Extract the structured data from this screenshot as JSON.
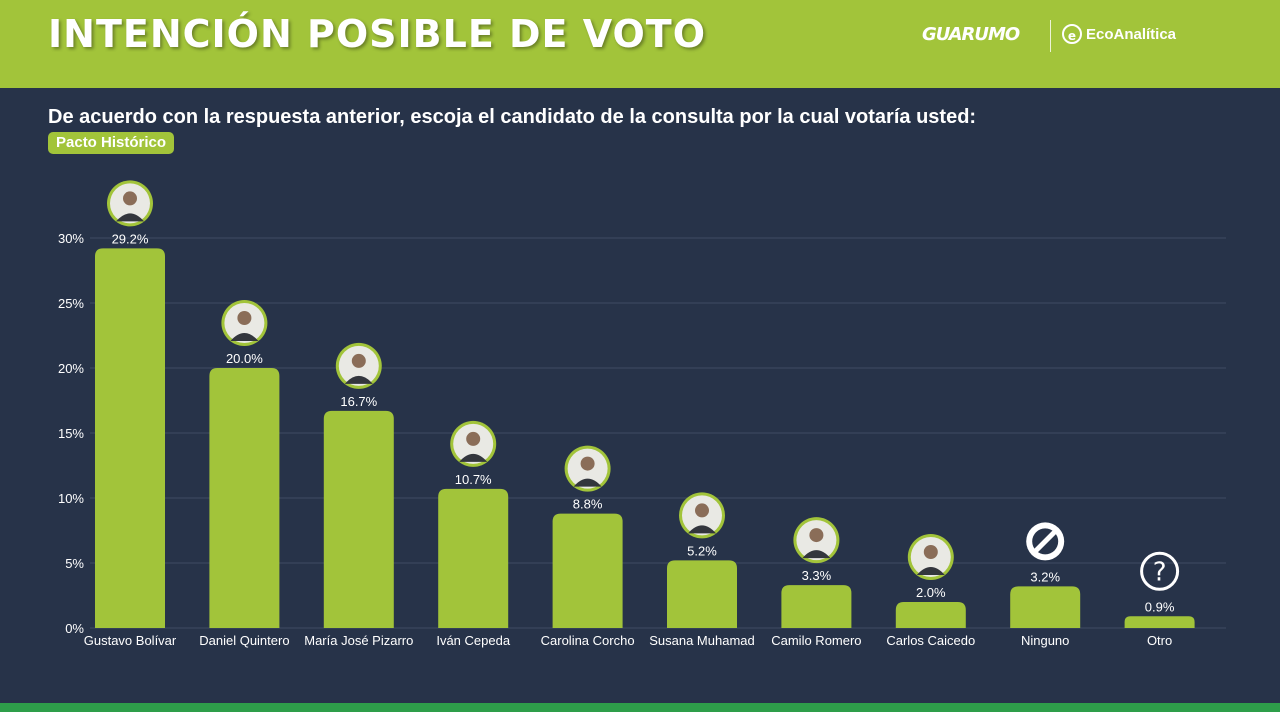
{
  "header": {
    "title": "INTENCIÓN POSIBLE DE VOTO",
    "logo_left": "GUARUMO",
    "logo_right": "EcoAnalítica",
    "logo_right_icon": "e-circle-icon"
  },
  "question": "De acuerdo con la respuesta anterior, escoja el candidato de la consulta por la cual votaría usted:",
  "badge": "Pacto Histórico",
  "colors": {
    "header_bg": "#a2c43a",
    "bar": "#a2c43a",
    "background": "#273349",
    "bottom_bar": "#2e9e4a"
  },
  "chart_data": {
    "type": "bar",
    "categories": [
      "Gustavo Bolívar",
      "Daniel Quintero",
      "María José Pizarro",
      "Iván Cepeda",
      "Carolina Corcho",
      "Susana Muhamad",
      "Camilo Romero",
      "Carlos Caicedo",
      "Ninguno",
      "Otro"
    ],
    "values": [
      29.2,
      20.0,
      16.7,
      10.7,
      8.8,
      5.2,
      3.3,
      2.0,
      3.2,
      0.9
    ],
    "value_labels": [
      "29.2%",
      "20.0%",
      "16.7%",
      "10.7%",
      "8.8%",
      "5.2%",
      "3.3%",
      "2.0%",
      "3.2%",
      "0.9%"
    ],
    "icons": [
      "avatar-icon",
      "avatar-icon",
      "avatar-icon",
      "avatar-icon",
      "avatar-icon",
      "avatar-icon",
      "avatar-icon",
      "avatar-icon",
      "no-entry-icon",
      "question-mark-icon"
    ],
    "ylim": [
      0,
      30
    ],
    "yticks": [
      0,
      5,
      10,
      15,
      20,
      25,
      30
    ],
    "ytick_labels": [
      "0%",
      "5%",
      "10%",
      "15%",
      "20%",
      "25%",
      "30%"
    ],
    "grid": true
  }
}
